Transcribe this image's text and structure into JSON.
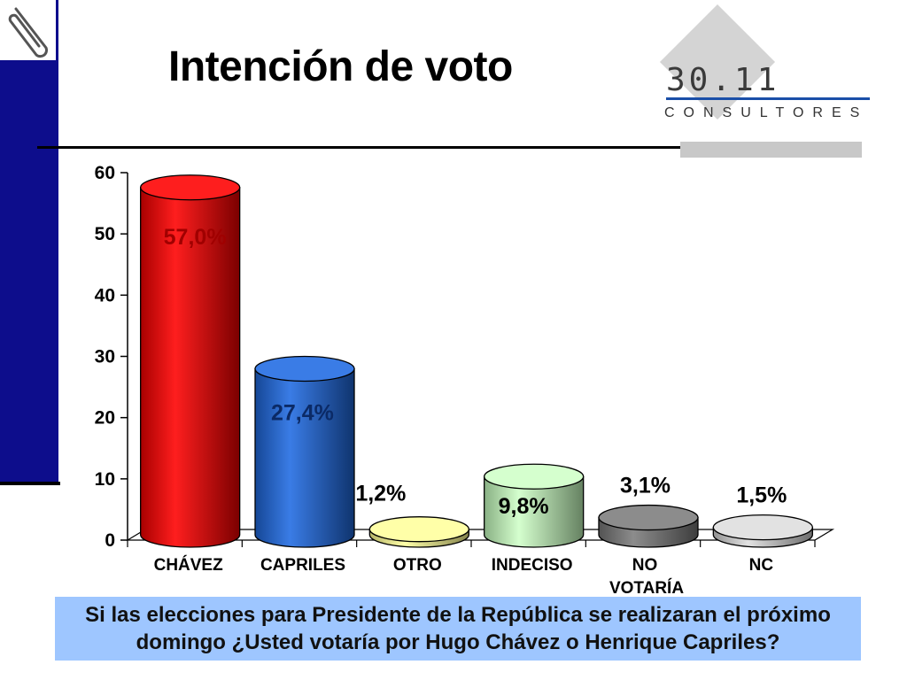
{
  "title": "Intención de voto",
  "logo": {
    "number": "30.11",
    "subtitle": "CONSULTORES",
    "accent_color": "#1a4fa8"
  },
  "question": "Si las elecciones para Presidente de la República se realizaran el próximo domingo ¿Usted votaría por Hugo Chávez o Henrique Capriles?",
  "chart_data": {
    "type": "bar",
    "categories": [
      "CHÁVEZ",
      "CAPRILES",
      "OTRO",
      "INDECISO",
      "NO VOTARÍA",
      "NC"
    ],
    "values": [
      57.0,
      27.4,
      1.2,
      9.8,
      3.1,
      1.5
    ],
    "data_labels": [
      "57,0%",
      "27,4%",
      "1,2%",
      "9,8%",
      "3,1%",
      "1,5%"
    ],
    "colors": [
      "#e00000",
      "#1c5ec8",
      "#f2f08a",
      "#b7ebb0",
      "#6e6e6e",
      "#c4c4c4"
    ],
    "label_colors": [
      "#a00000",
      "#0b2a66",
      "#000000",
      "#000000",
      "#000000",
      "#000000"
    ],
    "yticks": [
      0,
      10,
      20,
      30,
      40,
      50,
      60
    ],
    "ylim": [
      0,
      60
    ],
    "grid": false,
    "legend": "none"
  }
}
